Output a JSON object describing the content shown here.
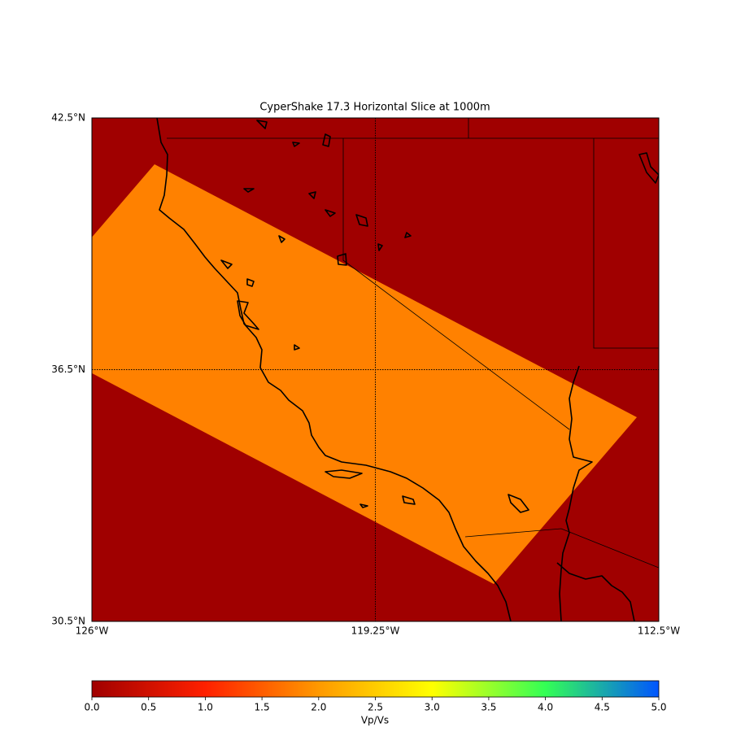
{
  "chart_data": {
    "type": "map",
    "title": "CyperShake 17.3 Horizontal Slice at 1000m",
    "xlim": [
      -126,
      -112.5
    ],
    "ylim": [
      30.5,
      42.5
    ],
    "xticks": [
      {
        "value": -126,
        "label": "126°W"
      },
      {
        "value": -119.25,
        "label": "119.25°W"
      },
      {
        "value": -112.5,
        "label": "112.5°W"
      }
    ],
    "yticks": [
      {
        "value": 30.5,
        "label": "30.5°N"
      },
      {
        "value": 36.5,
        "label": "36.5°N"
      },
      {
        "value": 42.5,
        "label": "42.5°N"
      }
    ],
    "grid": true,
    "outside_value": 0,
    "inside_value": 1.8,
    "colorbar": {
      "label": "Vp/Vs",
      "lim": [
        0,
        5
      ],
      "colors": [
        "#a00000",
        "#ff2000",
        "#ff9900",
        "#ffff00",
        "#33ff55",
        "#0055ff"
      ],
      "ticks": [
        {
          "value": 0,
          "label": "0.0"
        },
        0.5,
        {
          "value": 1,
          "label": "1.0"
        },
        1.5,
        {
          "value": 2,
          "label": "2.0"
        },
        2.5,
        {
          "value": 3,
          "label": "3.0"
        },
        3.5,
        {
          "value": 4,
          "label": "4.0"
        },
        4.5,
        {
          "value": 5,
          "label": "5.0"
        }
      ]
    }
  }
}
